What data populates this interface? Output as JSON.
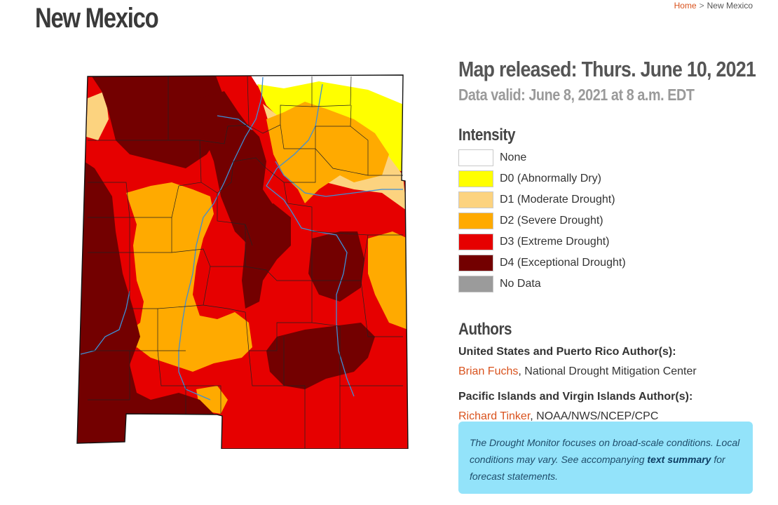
{
  "page": {
    "title": "New Mexico"
  },
  "breadcrumb": {
    "home_label": "Home",
    "separator": ">",
    "current_label": "New Mexico"
  },
  "map_info": {
    "released": "Map released: Thurs. June 10, 2021",
    "valid": "Data valid: June 8, 2021 at 8 a.m. EDT"
  },
  "intensity": {
    "heading": "Intensity",
    "items": [
      {
        "code": "",
        "label": "None",
        "color": "#ffffff"
      },
      {
        "code": "D0",
        "label": "(Abnormally Dry)",
        "color": "#ffff00"
      },
      {
        "code": "D1",
        "label": "(Moderate Drought)",
        "color": "#fcd37f"
      },
      {
        "code": "D2",
        "label": "(Severe Drought)",
        "color": "#ffaa00"
      },
      {
        "code": "D3",
        "label": "(Extreme Drought)",
        "color": "#e60000"
      },
      {
        "code": "D4",
        "label": "(Exceptional Drought)",
        "color": "#730000"
      },
      {
        "code": "",
        "label": "No Data",
        "color": "#9b9b9b"
      }
    ]
  },
  "authors": {
    "heading": "Authors",
    "groups": [
      {
        "label": "United States and Puerto Rico Author(s):",
        "name": "Brian Fuchs",
        "affiliation": ", National Drought Mitigation Center"
      },
      {
        "label": "Pacific Islands and Virgin Islands Author(s):",
        "name": "Richard Tinker",
        "affiliation": ", NOAA/NWS/NCEP/CPC"
      }
    ]
  },
  "notice": {
    "text_before": "The Drought Monitor focuses on broad-scale conditions. Local conditions may vary. See accompanying ",
    "link_text": "text summary",
    "text_after": " for forecast statements."
  },
  "map_colors": {
    "none": "#ffffff",
    "d0": "#ffff00",
    "d1": "#fcd37f",
    "d2": "#ffaa00",
    "d3": "#e60000",
    "d4": "#730000",
    "river": "#3d8fd6",
    "county_border": "#222222"
  }
}
